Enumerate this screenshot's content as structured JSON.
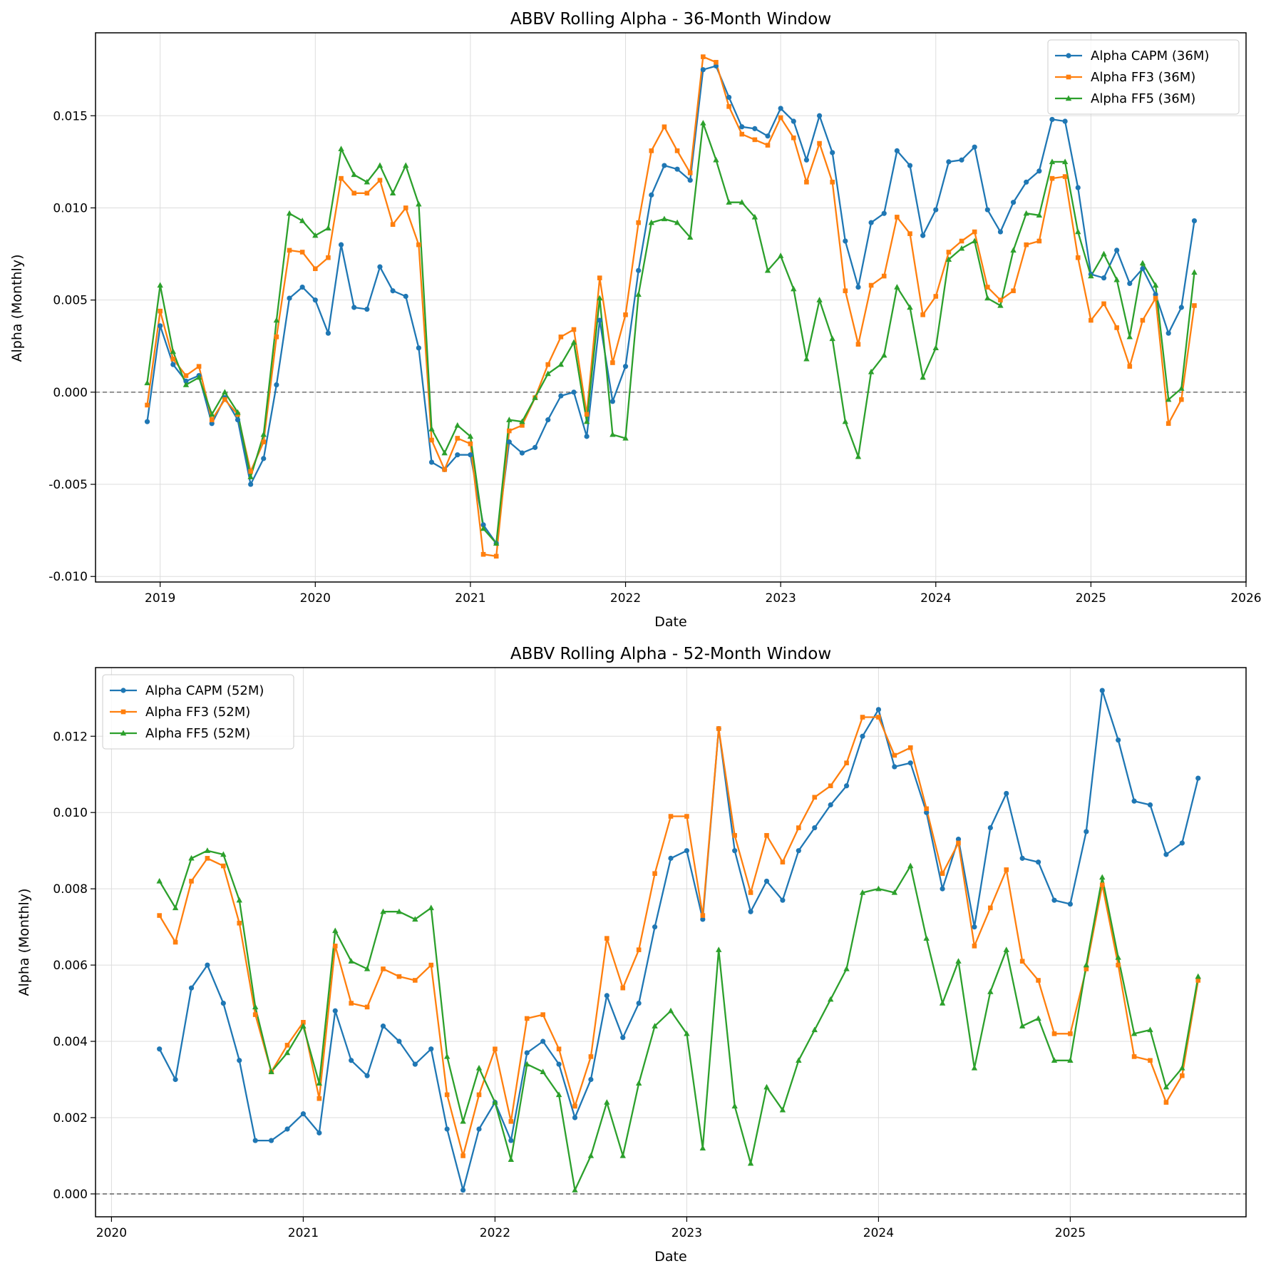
{
  "chart_data": [
    {
      "type": "line",
      "title": "ABBV Rolling Alpha - 36-Month Window",
      "xlabel": "Date",
      "ylabel": "Alpha (Monthly)",
      "x_start": "2018-12",
      "x_step": "1 month",
      "xlim": [
        "2018-08",
        "2026-01"
      ],
      "ylim": [
        -0.0103,
        0.0195
      ],
      "xticks": [
        "2019",
        "2020",
        "2021",
        "2022",
        "2023",
        "2024",
        "2025",
        "2026"
      ],
      "yticks": [
        "-0.010",
        "-0.005",
        "0.000",
        "0.005",
        "0.010",
        "0.015"
      ],
      "grid": true,
      "zero_line": "dashed gray",
      "legend_position": "top-right",
      "series": [
        {
          "name": "Alpha CAPM (36M)",
          "color": "#1f77b4",
          "marker": "circle",
          "values": [
            -0.0016,
            0.0036,
            0.0015,
            0.0006,
            0.0009,
            -0.0017,
            -0.0003,
            -0.0015,
            -0.005,
            -0.0036,
            0.0004,
            0.0051,
            0.0057,
            0.005,
            0.0032,
            0.008,
            0.0046,
            0.0045,
            0.0068,
            0.0055,
            0.0052,
            0.0024,
            -0.0038,
            -0.0042,
            -0.0034,
            -0.0034,
            -0.0072,
            -0.0082,
            -0.0027,
            -0.0033,
            -0.003,
            -0.0015,
            -0.0002,
            0.0,
            -0.0024,
            0.0039,
            -0.0005,
            0.0014,
            0.0066,
            0.0107,
            0.0123,
            0.0121,
            0.0115,
            0.0175,
            0.0177,
            0.016,
            0.0144,
            0.0143,
            0.0139,
            0.0154,
            0.0147,
            0.0126,
            0.015,
            0.013,
            0.0082,
            0.0057,
            0.0092,
            0.0097,
            0.0131,
            0.0123,
            0.0085,
            0.0099,
            0.0125,
            0.0126,
            0.0133,
            0.0099,
            0.0087,
            0.0103,
            0.0114,
            0.012,
            0.0148,
            0.0147,
            0.0111,
            0.0064,
            0.0062,
            0.0077,
            0.0059,
            0.0067,
            0.0053,
            0.0032,
            0.0046,
            0.0093
          ]
        },
        {
          "name": "Alpha FF3 (36M)",
          "color": "#ff7f0e",
          "marker": "square",
          "values": [
            -0.0007,
            0.0044,
            0.0018,
            0.0009,
            0.0014,
            -0.0015,
            -0.0004,
            -0.0012,
            -0.0043,
            -0.0027,
            0.003,
            0.0077,
            0.0076,
            0.0067,
            0.0073,
            0.0116,
            0.0108,
            0.0108,
            0.0115,
            0.0091,
            0.01,
            0.008,
            -0.0026,
            -0.0042,
            -0.0025,
            -0.0028,
            -0.0088,
            -0.0089,
            -0.0021,
            -0.0018,
            -0.0003,
            0.0015,
            0.003,
            0.0034,
            -0.0012,
            0.0062,
            0.0016,
            0.0042,
            0.0092,
            0.0131,
            0.0144,
            0.0131,
            0.0119,
            0.0182,
            0.0179,
            0.0155,
            0.014,
            0.0137,
            0.0134,
            0.0149,
            0.0138,
            0.0114,
            0.0135,
            0.0114,
            0.0055,
            0.0026,
            0.0058,
            0.0063,
            0.0095,
            0.0086,
            0.0042,
            0.0052,
            0.0076,
            0.0082,
            0.0087,
            0.0057,
            0.005,
            0.0055,
            0.008,
            0.0082,
            0.0116,
            0.0117,
            0.0073,
            0.0039,
            0.0048,
            0.0035,
            0.0014,
            0.0039,
            0.0051,
            -0.0017,
            -0.0004,
            0.0047
          ]
        },
        {
          "name": "Alpha FF5 (36M)",
          "color": "#2ca02c",
          "marker": "triangle",
          "values": [
            0.0005,
            0.0058,
            0.0022,
            0.0004,
            0.0008,
            -0.0012,
            0.0,
            -0.0011,
            -0.0046,
            -0.0023,
            0.0039,
            0.0097,
            0.0093,
            0.0085,
            0.0089,
            0.0132,
            0.0118,
            0.0114,
            0.0123,
            0.0108,
            0.0123,
            0.0102,
            -0.002,
            -0.0033,
            -0.0018,
            -0.0024,
            -0.0074,
            -0.0082,
            -0.0015,
            -0.0016,
            -0.0003,
            0.001,
            0.0015,
            0.0027,
            -0.0016,
            0.0051,
            -0.0023,
            -0.0025,
            0.0053,
            0.0092,
            0.0094,
            0.0092,
            0.0084,
            0.0146,
            0.0126,
            0.0103,
            0.0103,
            0.0095,
            0.0066,
            0.0074,
            0.0056,
            0.0018,
            0.005,
            0.0029,
            -0.0016,
            -0.0035,
            0.0011,
            0.002,
            0.0057,
            0.0046,
            0.0008,
            0.0024,
            0.0072,
            0.0078,
            0.0082,
            0.0051,
            0.0047,
            0.0077,
            0.0097,
            0.0096,
            0.0125,
            0.0125,
            0.0087,
            0.0063,
            0.0075,
            0.0061,
            0.003,
            0.007,
            0.0058,
            -0.0004,
            0.0002,
            0.0065
          ]
        }
      ]
    },
    {
      "type": "line",
      "title": "ABBV Rolling Alpha - 52-Month Window",
      "xlabel": "Date",
      "ylabel": "Alpha (Monthly)",
      "x_start": "2020-04",
      "x_step": "1 month",
      "xlim": [
        "2019-12",
        "2025-12"
      ],
      "ylim": [
        -0.0006,
        0.0138
      ],
      "xticks": [
        "2020",
        "2021",
        "2022",
        "2023",
        "2024",
        "2025"
      ],
      "yticks": [
        "0.000",
        "0.002",
        "0.004",
        "0.006",
        "0.008",
        "0.010",
        "0.012"
      ],
      "grid": true,
      "zero_line": "dashed gray",
      "legend_position": "top-left",
      "series": [
        {
          "name": "Alpha CAPM (52M)",
          "color": "#1f77b4",
          "marker": "circle",
          "values": [
            0.0038,
            0.003,
            0.0054,
            0.006,
            0.005,
            0.0035,
            0.0014,
            0.0014,
            0.0017,
            0.0021,
            0.0016,
            0.0048,
            0.0035,
            0.0031,
            0.0044,
            0.004,
            0.0034,
            0.0038,
            0.0017,
            0.0001,
            0.0017,
            0.0024,
            0.0014,
            0.0037,
            0.004,
            0.0034,
            0.002,
            0.003,
            0.0052,
            0.0041,
            0.005,
            0.007,
            0.0088,
            0.009,
            0.0072,
            0.0122,
            0.009,
            0.0074,
            0.0082,
            0.0077,
            0.009,
            0.0096,
            0.0102,
            0.0107,
            0.012,
            0.0127,
            0.0112,
            0.0113,
            0.01,
            0.008,
            0.0093,
            0.007,
            0.0096,
            0.0105,
            0.0088,
            0.0087,
            0.0077,
            0.0076,
            0.0095,
            0.0132,
            0.0119,
            0.0103,
            0.0102,
            0.0089,
            0.0092,
            0.0109
          ]
        },
        {
          "name": "Alpha FF3 (52M)",
          "color": "#ff7f0e",
          "marker": "square",
          "values": [
            0.0073,
            0.0066,
            0.0082,
            0.0088,
            0.0086,
            0.0071,
            0.0047,
            0.0032,
            0.0039,
            0.0045,
            0.0025,
            0.0065,
            0.005,
            0.0049,
            0.0059,
            0.0057,
            0.0056,
            0.006,
            0.0026,
            0.001,
            0.0026,
            0.0038,
            0.0019,
            0.0046,
            0.0047,
            0.0038,
            0.0023,
            0.0036,
            0.0067,
            0.0054,
            0.0064,
            0.0084,
            0.0099,
            0.0099,
            0.0073,
            0.0122,
            0.0094,
            0.0079,
            0.0094,
            0.0087,
            0.0096,
            0.0104,
            0.0107,
            0.0113,
            0.0125,
            0.0125,
            0.0115,
            0.0117,
            0.0101,
            0.0084,
            0.0092,
            0.0065,
            0.0075,
            0.0085,
            0.0061,
            0.0056,
            0.0042,
            0.0042,
            0.0059,
            0.0081,
            0.006,
            0.0036,
            0.0035,
            0.0024,
            0.0031,
            0.0056
          ]
        },
        {
          "name": "Alpha FF5 (52M)",
          "color": "#2ca02c",
          "marker": "triangle",
          "values": [
            0.0082,
            0.0075,
            0.0088,
            0.009,
            0.0089,
            0.0077,
            0.0049,
            0.0032,
            0.0037,
            0.0044,
            0.0029,
            0.0069,
            0.0061,
            0.0059,
            0.0074,
            0.0074,
            0.0072,
            0.0075,
            0.0036,
            0.0019,
            0.0033,
            0.0024,
            0.0009,
            0.0034,
            0.0032,
            0.0026,
            0.0001,
            0.001,
            0.0024,
            0.001,
            0.0029,
            0.0044,
            0.0048,
            0.0042,
            0.0012,
            0.0064,
            0.0023,
            0.0008,
            0.0028,
            0.0022,
            0.0035,
            0.0043,
            0.0051,
            0.0059,
            0.0079,
            0.008,
            0.0079,
            0.0086,
            0.0067,
            0.005,
            0.0061,
            0.0033,
            0.0053,
            0.0064,
            0.0044,
            0.0046,
            0.0035,
            0.0035,
            0.006,
            0.0083,
            0.0062,
            0.0042,
            0.0043,
            0.0028,
            0.0033,
            0.0057
          ]
        }
      ]
    }
  ]
}
